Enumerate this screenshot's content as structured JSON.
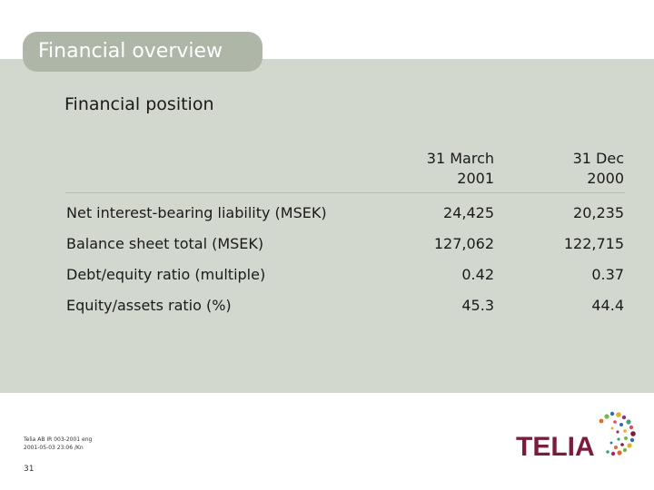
{
  "header": {
    "title": "Financial overview",
    "subtitle": "Financial position"
  },
  "table": {
    "columns": [
      {
        "line1": "31 March",
        "line2": "2001"
      },
      {
        "line1": "31 Dec",
        "line2": "2000"
      }
    ],
    "rows": [
      {
        "label": "Net interest-bearing liability (MSEK)",
        "v1": "24,425",
        "v2": "20,235"
      },
      {
        "label": "Balance sheet total (MSEK)",
        "v1": "127,062",
        "v2": "122,715"
      },
      {
        "label": "Debt/equity ratio (multiple)",
        "v1": "0.42",
        "v2": "0.37"
      },
      {
        "label": "Equity/assets ratio (%)",
        "v1": "45.3",
        "v2": "44.4"
      }
    ]
  },
  "footer": {
    "line1": "Telia AB IR 003-2001 eng",
    "line2": "2001-05-03 23:06 /Kn",
    "page": "31"
  },
  "logo": {
    "text": "TELIA",
    "color": "#7a1d3a"
  },
  "colors": {
    "panel": "#d3d8cf",
    "title_pill": "#aeb6a8"
  }
}
